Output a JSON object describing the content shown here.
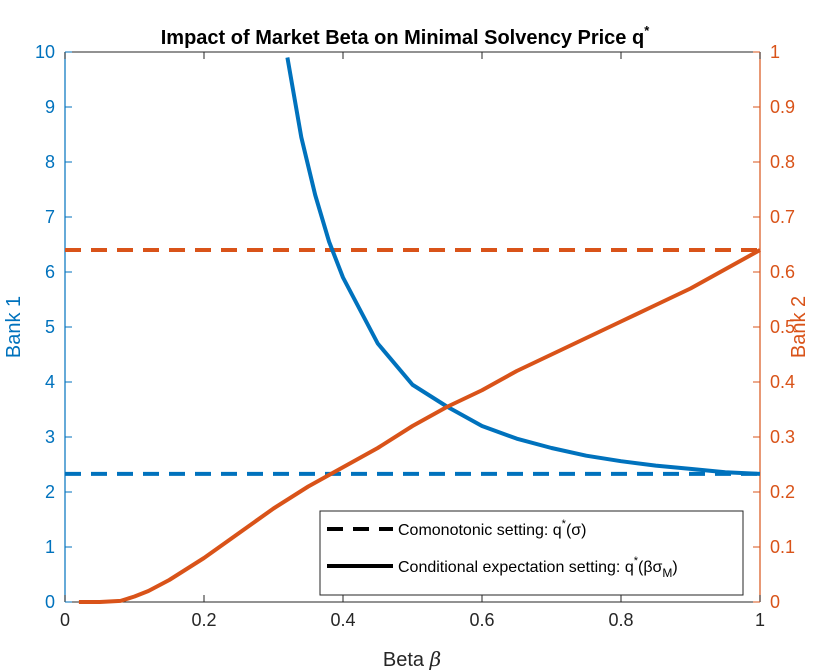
{
  "chart_data": {
    "type": "line",
    "title": "Impact of Market Beta on Minimal Solvency Price q",
    "title_sup": "*",
    "xlabel": "Beta",
    "xlabel_symbol": "β",
    "ylabel_left": "Bank 1",
    "ylabel_right": "Bank 2",
    "xlim": [
      0,
      1
    ],
    "ylim_left": [
      0,
      10
    ],
    "ylim_right": [
      0,
      1
    ],
    "xticks": [
      "0",
      "0.2",
      "0.4",
      "0.6",
      "0.8",
      "1"
    ],
    "yticks_left": [
      "0",
      "1",
      "2",
      "3",
      "4",
      "5",
      "6",
      "7",
      "8",
      "9",
      "10"
    ],
    "yticks_right": [
      "0",
      "0.1",
      "0.2",
      "0.3",
      "0.4",
      "0.5",
      "0.6",
      "0.7",
      "0.8",
      "0.9",
      "1"
    ],
    "grid": false,
    "colors": {
      "bank1": "#0072BD",
      "bank2": "#D95319"
    },
    "series": [
      {
        "name": "Bank 1 comonotonic q*(σ)",
        "axis": "left",
        "style": "dashed",
        "color": "#0072BD",
        "x": [
          0,
          1
        ],
        "y": [
          2.33,
          2.33
        ]
      },
      {
        "name": "Bank 2 comonotonic q*(σ)",
        "axis": "right",
        "style": "dashed",
        "color": "#D95319",
        "x": [
          0,
          1
        ],
        "y": [
          0.64,
          0.64
        ]
      },
      {
        "name": "Bank 1 conditional expectation q*(βσM)",
        "axis": "left",
        "style": "solid",
        "color": "#0072BD",
        "x": [
          0.32,
          0.34,
          0.36,
          0.38,
          0.4,
          0.45,
          0.5,
          0.55,
          0.6,
          0.65,
          0.7,
          0.75,
          0.8,
          0.85,
          0.9,
          0.95,
          1.0
        ],
        "y": [
          9.9,
          8.45,
          7.4,
          6.55,
          5.9,
          4.7,
          3.95,
          3.55,
          3.2,
          2.97,
          2.8,
          2.66,
          2.56,
          2.48,
          2.42,
          2.36,
          2.33
        ]
      },
      {
        "name": "Bank 2 conditional expectation q*(βσM)",
        "axis": "right",
        "style": "solid",
        "color": "#D95319",
        "x": [
          0.02,
          0.05,
          0.08,
          0.1,
          0.12,
          0.15,
          0.2,
          0.25,
          0.3,
          0.35,
          0.4,
          0.45,
          0.5,
          0.55,
          0.6,
          0.65,
          0.7,
          0.75,
          0.8,
          0.85,
          0.9,
          0.95,
          1.0
        ],
        "y": [
          0.0,
          0.0,
          0.002,
          0.01,
          0.02,
          0.04,
          0.08,
          0.125,
          0.17,
          0.21,
          0.245,
          0.28,
          0.32,
          0.355,
          0.385,
          0.42,
          0.45,
          0.48,
          0.51,
          0.54,
          0.57,
          0.605,
          0.64
        ]
      }
    ],
    "legend": {
      "position": "bottom-right",
      "entries": [
        {
          "label": "Comonotonic setting: q",
          "sup": "*",
          "tail": "(σ)",
          "style": "dashed"
        },
        {
          "label": "Conditional expectation setting: q",
          "sup": "*",
          "tail_open": "(βσ",
          "sub": "M",
          "tail_close": ")",
          "style": "solid"
        }
      ]
    }
  }
}
